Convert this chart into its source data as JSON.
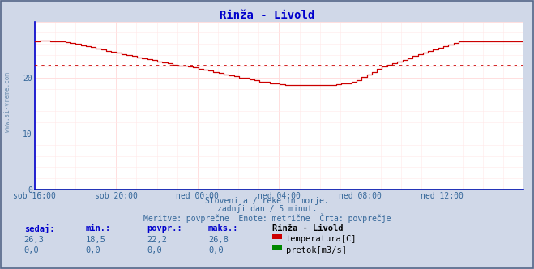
{
  "title": "Rinža - Livold",
  "title_color": "#0000cc",
  "bg_color": "#d0d8e8",
  "plot_bg_color": "#ffffff",
  "grid_color_h": "#ffcccc",
  "grid_color_v": "#ffcccc",
  "x_labels": [
    "sob 16:00",
    "sob 20:00",
    "ned 00:00",
    "ned 04:00",
    "ned 08:00",
    "ned 12:00"
  ],
  "x_ticks_norm": [
    0.0,
    0.1667,
    0.3333,
    0.5,
    0.6667,
    0.8333
  ],
  "ylim": [
    0,
    30
  ],
  "yticks": [
    0,
    10,
    20,
    30
  ],
  "avg_line_value": 22.2,
  "avg_line_color": "#cc0000",
  "temp_line_color": "#cc0000",
  "flow_line_color": "#008800",
  "axis_color": "#0000cc",
  "arrow_color": "#cc0000",
  "watermark_text": "www.si-vreme.com",
  "watermark_color": "#7090b0",
  "footer_lines": [
    "Slovenija / reke in morje.",
    "zadnji dan / 5 minut.",
    "Meritve: povprečne  Enote: metrične  Črta: povprečje"
  ],
  "footer_color": "#336699",
  "table_headers": [
    "sedaj:",
    "min.:",
    "povpr.:",
    "maks.:"
  ],
  "table_header_color": "#0000cc",
  "table_station": "Rinža - Livold",
  "table_station_color": "#000000",
  "table_row1_values": [
    "26,3",
    "18,5",
    "22,2",
    "26,8"
  ],
  "table_row2_values": [
    "0,0",
    "0,0",
    "0,0",
    "0,0"
  ],
  "table_value_color": "#336699",
  "legend_labels": [
    "temperatura[C]",
    "pretok[m3/s]"
  ],
  "legend_colors": [
    "#cc0000",
    "#008800"
  ],
  "temp_data": [
    26.5,
    26.6,
    26.6,
    26.5,
    26.5,
    26.4,
    26.3,
    26.2,
    26.1,
    25.8,
    25.6,
    25.4,
    25.2,
    25.0,
    24.8,
    24.6,
    24.4,
    24.2,
    24.0,
    23.8,
    23.6,
    23.4,
    23.3,
    23.1,
    22.9,
    22.7,
    22.5,
    22.3,
    22.2,
    22.1,
    22.0,
    21.8,
    21.6,
    21.4,
    21.2,
    21.0,
    20.8,
    20.6,
    20.4,
    20.2,
    20.0,
    19.9,
    19.7,
    19.5,
    19.3,
    19.2,
    19.0,
    18.9,
    18.8,
    18.7,
    18.7,
    18.7,
    18.7,
    18.6,
    18.6,
    18.6,
    18.6,
    18.7,
    18.7,
    18.8,
    18.9,
    19.0,
    19.2,
    19.5,
    20.1,
    20.5,
    21.0,
    21.5,
    22.0,
    22.3,
    22.6,
    22.9,
    23.2,
    23.5,
    23.8,
    24.1,
    24.4,
    24.7,
    25.0,
    25.3,
    25.6,
    25.9,
    26.2,
    26.5
  ]
}
